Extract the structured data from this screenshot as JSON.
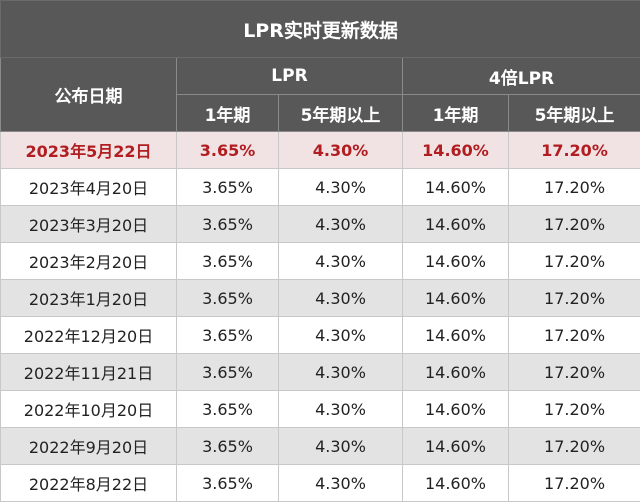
{
  "table": {
    "title": "LPR实时更新数据",
    "headers": {
      "date": "公布日期",
      "group_lpr": "LPR",
      "group_4x": "4倍LPR",
      "one_year": "1年期",
      "five_year": "5年期以上"
    },
    "rows": [
      [
        "2023年5月22日",
        "3.65%",
        "4.30%",
        "14.60%",
        "17.20%"
      ],
      [
        "2023年4月20日",
        "3.65%",
        "4.30%",
        "14.60%",
        "17.20%"
      ],
      [
        "2023年3月20日",
        "3.65%",
        "4.30%",
        "14.60%",
        "17.20%"
      ],
      [
        "2023年2月20日",
        "3.65%",
        "4.30%",
        "14.60%",
        "17.20%"
      ],
      [
        "2023年1月20日",
        "3.65%",
        "4.30%",
        "14.60%",
        "17.20%"
      ],
      [
        "2022年12月20日",
        "3.65%",
        "4.30%",
        "14.60%",
        "17.20%"
      ],
      [
        "2022年11月21日",
        "3.65%",
        "4.30%",
        "14.60%",
        "17.20%"
      ],
      [
        "2022年10月20日",
        "3.65%",
        "4.30%",
        "14.60%",
        "17.20%"
      ],
      [
        "2022年9月20日",
        "3.65%",
        "4.30%",
        "14.60%",
        "17.20%"
      ],
      [
        "2022年8月22日",
        "3.65%",
        "4.30%",
        "14.60%",
        "17.20%"
      ]
    ]
  },
  "colors": {
    "header_bg": "#585858",
    "highlight_text": "#b11d21",
    "highlight_bg": "#f1e3e4",
    "row_alt_bg": "#e3e3e3"
  }
}
